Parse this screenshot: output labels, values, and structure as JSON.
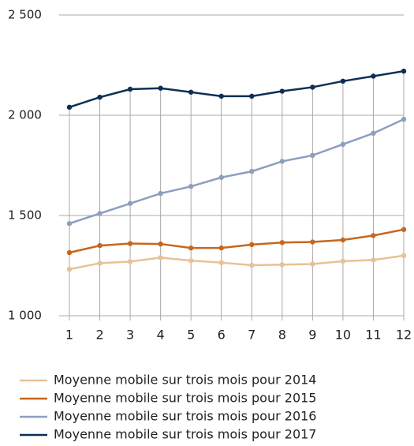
{
  "chart_data": {
    "type": "line",
    "categories": [
      "1",
      "2",
      "3",
      "4",
      "5",
      "6",
      "7",
      "8",
      "9",
      "10",
      "11",
      "12"
    ],
    "series": [
      {
        "name": "Moyenne mobile sur trois mois pour 2014",
        "color": "#e8c196",
        "values": [
          1232,
          1262,
          1270,
          1290,
          1275,
          1265,
          1252,
          1255,
          1258,
          1272,
          1278,
          1300
        ]
      },
      {
        "name": "Moyenne mobile sur trois mois pour 2015",
        "color": "#c8661c",
        "values": [
          1315,
          1350,
          1360,
          1358,
          1338,
          1338,
          1355,
          1365,
          1368,
          1378,
          1400,
          1430
        ]
      },
      {
        "name": "Moyenne mobile sur trois mois pour 2016",
        "color": "#8c9fbf",
        "values": [
          1460,
          1510,
          1560,
          1610,
          1645,
          1690,
          1720,
          1770,
          1800,
          1855,
          1910,
          1980
        ]
      },
      {
        "name": "Moyenne mobile sur trois mois pour 2017",
        "color": "#0d2f55",
        "values": [
          2040,
          2090,
          2130,
          2135,
          2115,
          2095,
          2095,
          2120,
          2140,
          2170,
          2195,
          2220
        ]
      }
    ],
    "ylim": [
      1000,
      2500
    ],
    "yticks": [
      {
        "value": 1000,
        "label": "1 000"
      },
      {
        "value": 1500,
        "label": "1 500"
      },
      {
        "value": 2000,
        "label": "2 000"
      },
      {
        "value": 2500,
        "label": "2 500"
      }
    ],
    "grid": true,
    "legend": "bottom"
  }
}
